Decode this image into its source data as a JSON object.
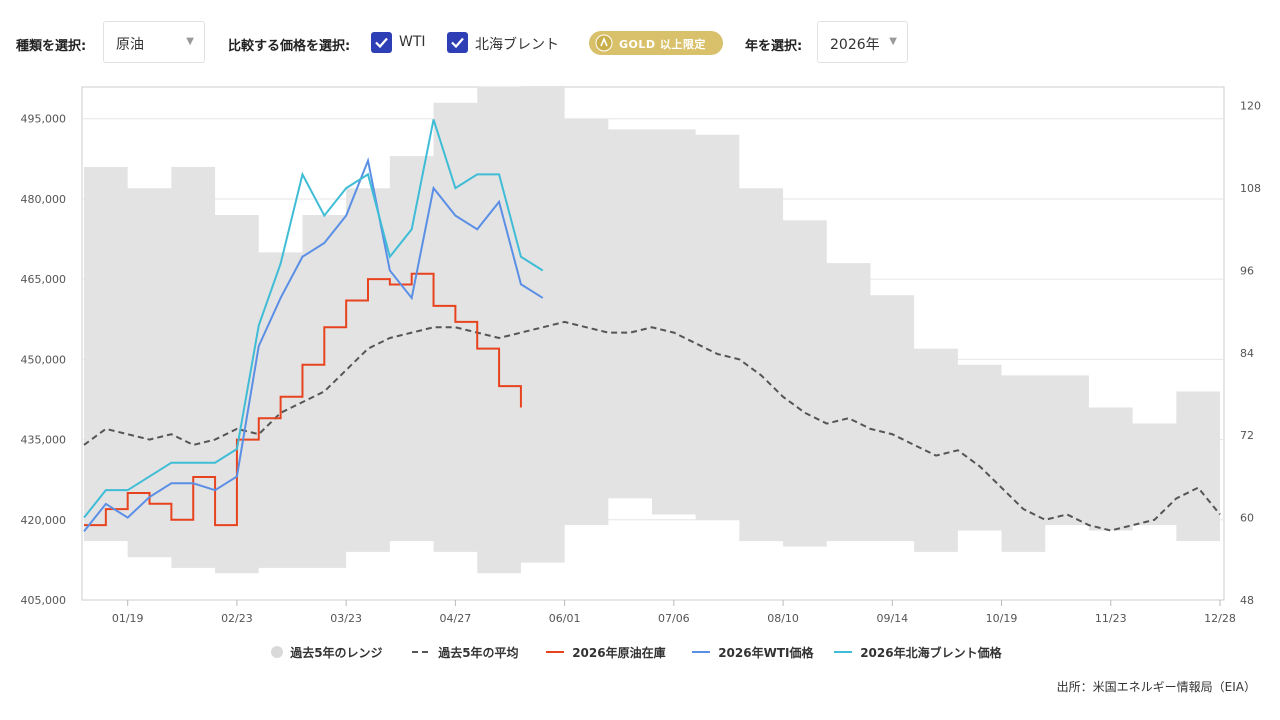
{
  "toolbar": {
    "type_label": "種類を選択:",
    "type_value": "原油",
    "compare_label": "比較する価格を選択:",
    "compare_options": [
      {
        "label": "WTI",
        "checked": true
      },
      {
        "label": "北海ブレント",
        "checked": true
      }
    ],
    "gold_badge": "GOLD 以上限定",
    "year_label": "年を選択:",
    "year_value": "2026年"
  },
  "legend": [
    {
      "label": "過去5年のレンジ",
      "color": "#d9d9d9",
      "style": "dot"
    },
    {
      "label": "過去5年の平均",
      "color": "#555555",
      "style": "dash"
    },
    {
      "label": "2026年原油在庫",
      "color": "#e8431f",
      "style": "line"
    },
    {
      "label": "2026年WTI価格",
      "color": "#5b8fe6",
      "style": "line"
    },
    {
      "label": "2026年北海ブレント価格",
      "color": "#3fbcd6",
      "style": "line"
    }
  ],
  "source": "出所：米国エネルギー情報局（EIA）",
  "chart_data": {
    "type": "line",
    "x_ticks": [
      "01/19",
      "02/23",
      "03/23",
      "04/27",
      "06/01",
      "07/06",
      "08/10",
      "09/14",
      "10/19",
      "11/23",
      "12/28"
    ],
    "y_left": {
      "ticks": [
        "405,000",
        "420,000",
        "435,000",
        "450,000",
        "465,000",
        "480,000",
        "495,000"
      ],
      "range": [
        405000,
        500000
      ]
    },
    "y_right": {
      "ticks": [
        "48",
        "60",
        "72",
        "84",
        "96",
        "108",
        "120"
      ],
      "range": [
        48,
        122
      ]
    },
    "range_band": {
      "weeks": [
        0,
        2,
        4,
        6,
        8,
        10,
        12,
        14,
        16,
        18,
        20,
        22,
        24,
        26,
        28,
        30,
        32,
        34,
        36,
        38,
        40,
        42,
        44,
        46,
        48,
        50,
        52
      ],
      "upper": [
        486,
        482,
        486,
        477,
        470,
        477,
        482,
        488,
        498,
        501,
        502,
        495,
        493,
        493,
        492,
        482,
        476,
        468,
        462,
        452,
        449,
        447,
        447,
        441,
        438,
        444,
        430
      ],
      "lower": [
        416,
        413,
        411,
        410,
        411,
        411,
        414,
        416,
        414,
        410,
        412,
        419,
        424,
        421,
        420,
        416,
        415,
        416,
        416,
        414,
        418,
        414,
        419,
        418,
        419,
        416,
        416
      ]
    },
    "series": [
      {
        "name": "過去5年の平均",
        "axis": "left",
        "weeks": [
          0,
          1,
          2,
          3,
          4,
          5,
          6,
          7,
          8,
          9,
          10,
          11,
          12,
          13,
          14,
          15,
          16,
          17,
          18,
          19,
          20,
          21,
          22,
          23,
          24,
          25,
          26,
          27,
          28,
          29,
          30,
          31,
          32,
          33,
          34,
          35,
          36,
          37,
          38,
          39,
          40,
          41,
          42,
          43,
          44,
          45,
          46,
          47,
          48,
          49,
          50,
          51,
          52
        ],
        "values": [
          434,
          437,
          436,
          435,
          436,
          434,
          435,
          437,
          436,
          440,
          442,
          444,
          448,
          452,
          454,
          455,
          456,
          456,
          455,
          454,
          455,
          456,
          457,
          456,
          455,
          455,
          456,
          455,
          453,
          451,
          450,
          447,
          443,
          440,
          438,
          439,
          437,
          436,
          434,
          432,
          433,
          430,
          426,
          422,
          420,
          421,
          419,
          418,
          419,
          420,
          424,
          426,
          421
        ]
      },
      {
        "name": "2026年原油在庫",
        "axis": "left",
        "weeks": [
          0,
          1,
          2,
          3,
          4,
          5,
          6,
          7,
          8,
          9,
          10,
          11,
          12,
          13,
          14,
          15,
          16,
          17,
          18,
          19,
          20,
          21,
          22
        ],
        "values": [
          419,
          422,
          425,
          423,
          420,
          428,
          419,
          435,
          439,
          443,
          449,
          456,
          461,
          465,
          464,
          466,
          460,
          457,
          452,
          445,
          441,
          null,
          null
        ]
      },
      {
        "name": "2026年WTI価格",
        "axis": "right",
        "weeks": [
          0,
          1,
          2,
          3,
          4,
          5,
          6,
          7,
          8,
          9,
          10,
          11,
          12,
          13,
          14,
          15,
          16,
          17,
          18,
          19,
          20,
          21,
          22
        ],
        "values": [
          58,
          62,
          60,
          63,
          65,
          65,
          64,
          66,
          85,
          92,
          98,
          100,
          104,
          112,
          96,
          92,
          108,
          104,
          102,
          106,
          94,
          92,
          null
        ]
      },
      {
        "name": "2026年北海ブレント価格",
        "axis": "right",
        "weeks": [
          0,
          1,
          2,
          3,
          4,
          5,
          6,
          7,
          8,
          9,
          10,
          11,
          12,
          13,
          14,
          15,
          16,
          17,
          18,
          19,
          20,
          21,
          22
        ],
        "values": [
          60,
          64,
          64,
          66,
          68,
          68,
          68,
          70,
          88,
          97,
          110,
          104,
          108,
          110,
          98,
          102,
          118,
          108,
          110,
          110,
          98,
          96,
          null
        ]
      }
    ]
  }
}
